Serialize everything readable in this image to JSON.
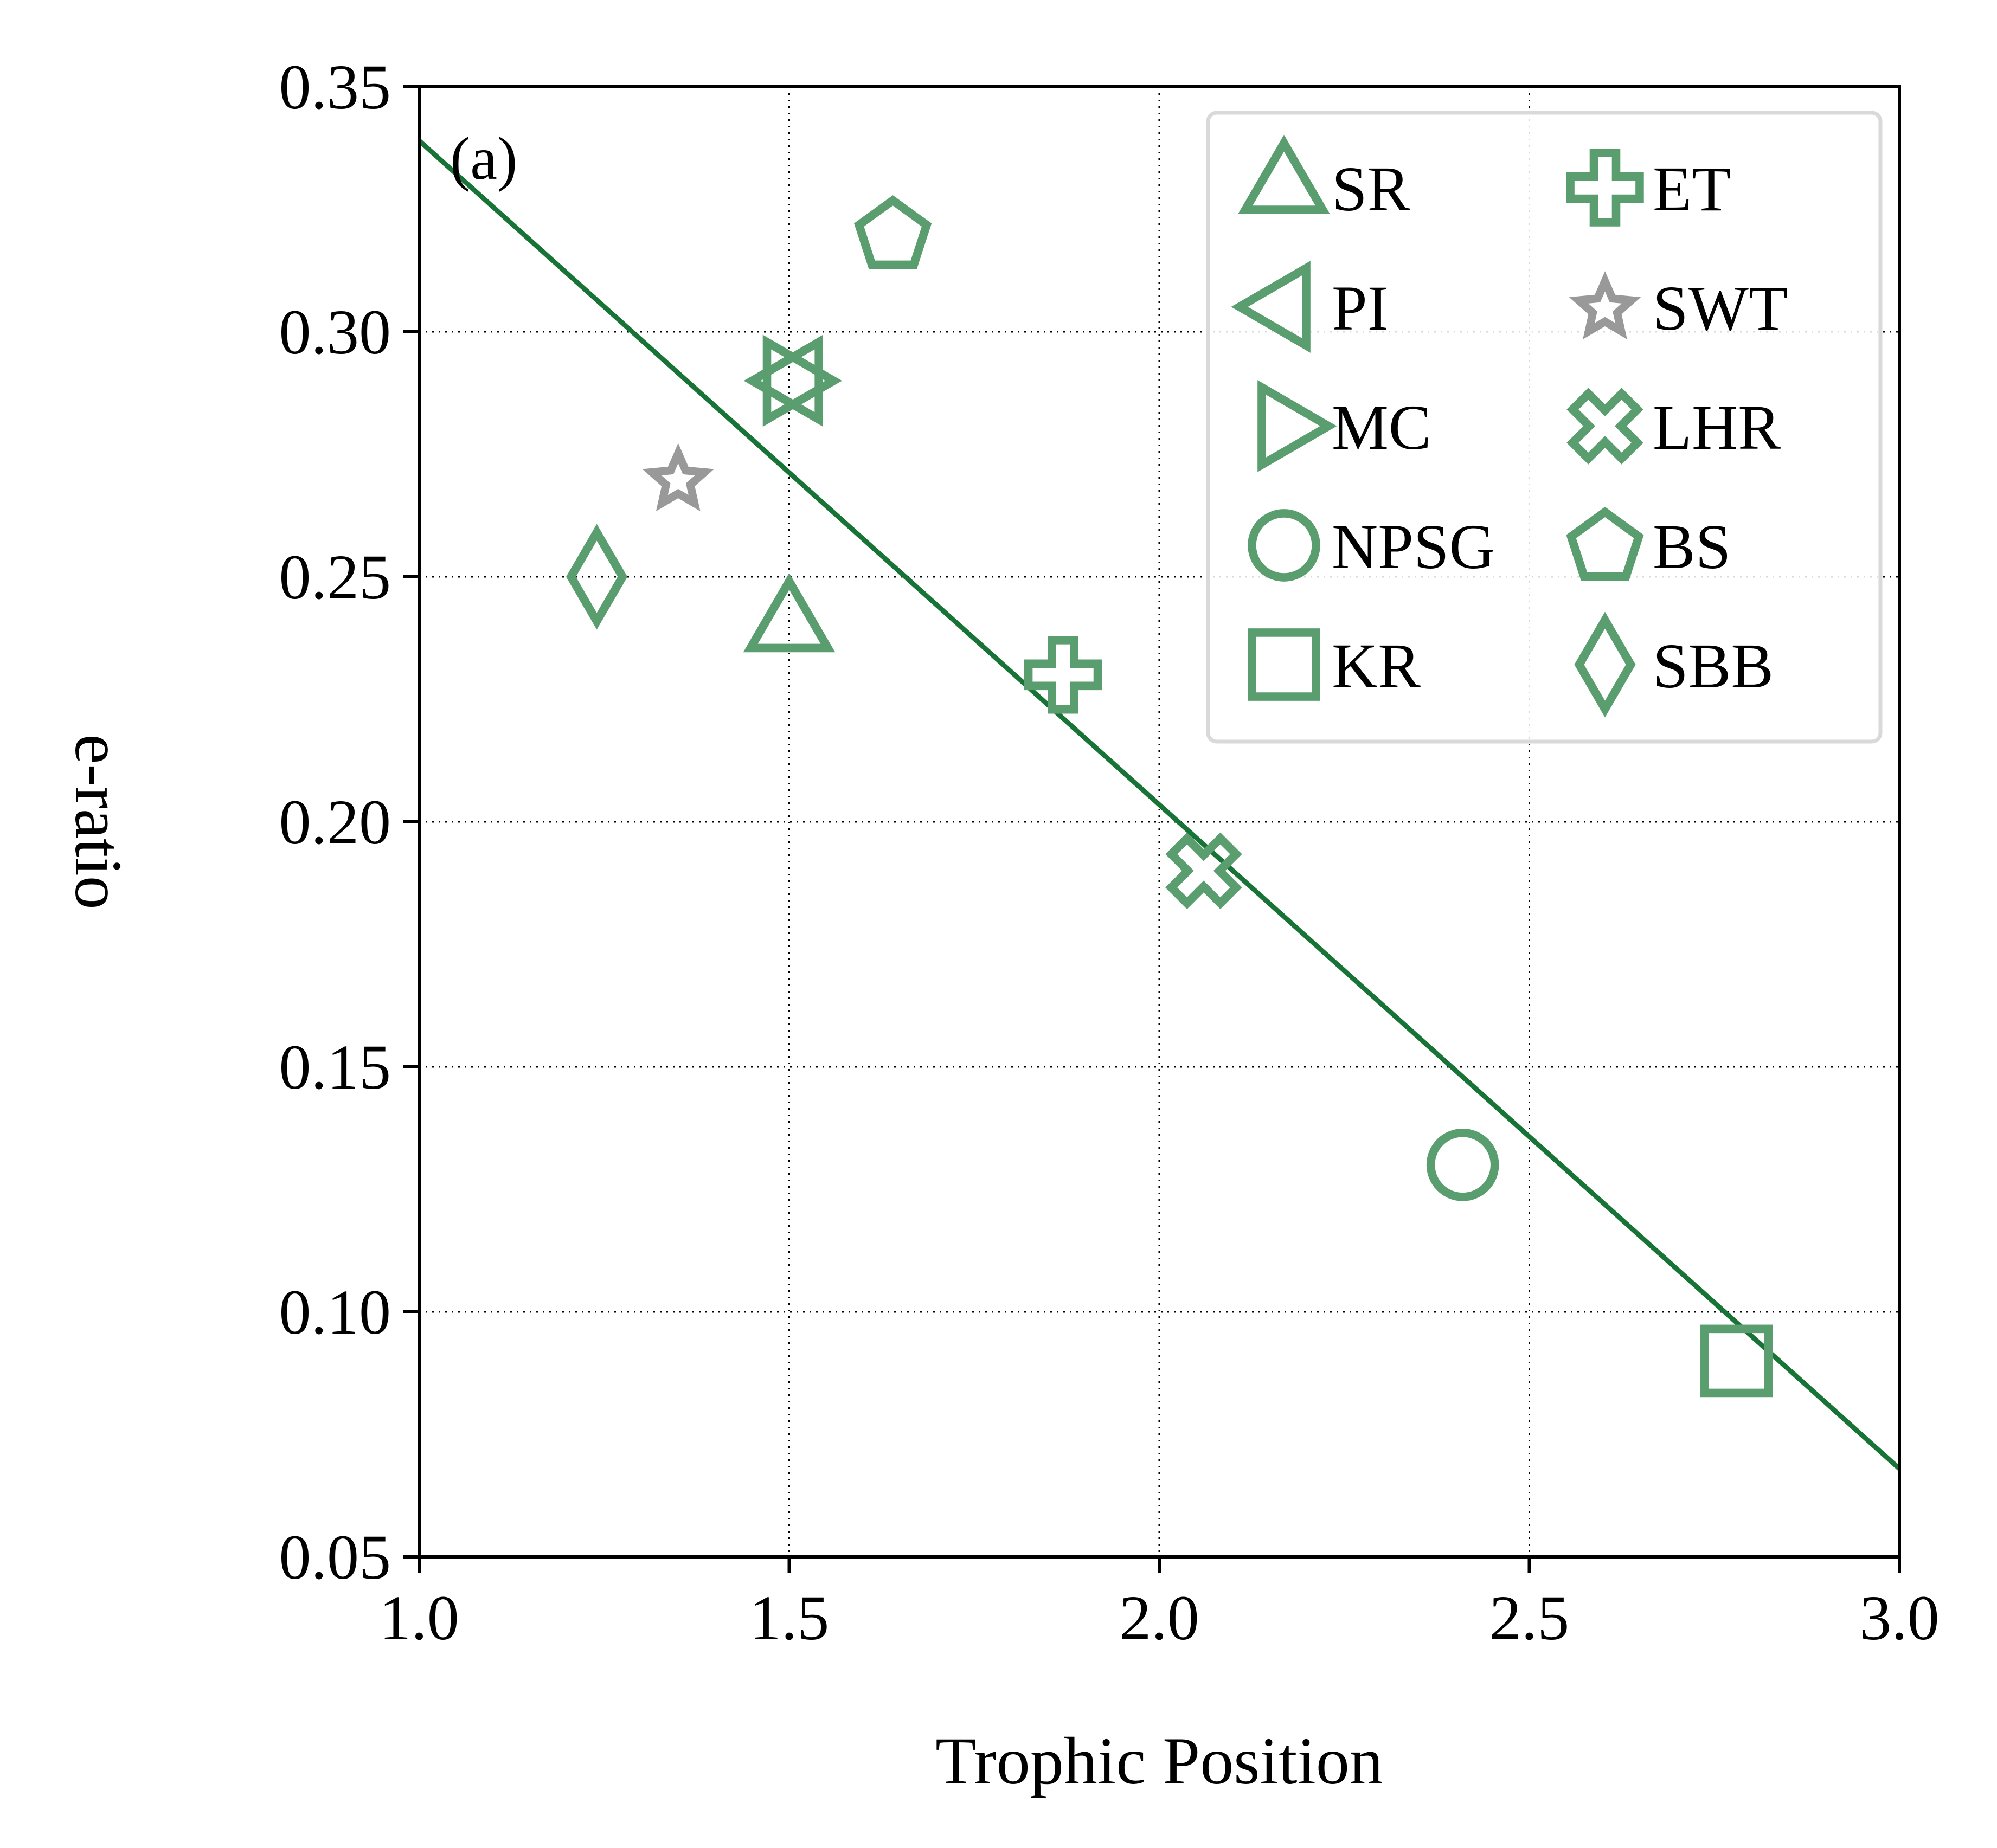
{
  "chart_data": {
    "type": "scatter",
    "panel_label": "(a)",
    "xlabel": "Trophic Position",
    "ylabel": "e-ratio",
    "xlim": [
      1.0,
      3.0
    ],
    "ylim": [
      0.05,
      0.35
    ],
    "x_ticks": [
      "1.0",
      "1.5",
      "2.0",
      "2.5",
      "3.0"
    ],
    "y_ticks": [
      "0.05",
      "0.10",
      "0.15",
      "0.20",
      "0.25",
      "0.30",
      "0.35"
    ],
    "grid": true,
    "legend_position": "top-right",
    "legend_columns": 2,
    "colors": {
      "marker": "#5a9e6f",
      "swt_marker": "#999999",
      "fit_line": "#187436"
    },
    "series": [
      {
        "name": "SR",
        "marker": "triangle-up",
        "x": 1.5,
        "y": 0.24
      },
      {
        "name": "PI",
        "marker": "triangle-left",
        "x": 1.51,
        "y": 0.29
      },
      {
        "name": "MC",
        "marker": "triangle-right",
        "x": 1.5,
        "y": 0.29
      },
      {
        "name": "NPSG",
        "marker": "circle",
        "x": 2.41,
        "y": 0.13
      },
      {
        "name": "KR",
        "marker": "square",
        "x": 2.78,
        "y": 0.09
      },
      {
        "name": "ET",
        "marker": "plus",
        "x": 1.87,
        "y": 0.23
      },
      {
        "name": "SWT",
        "marker": "star",
        "x": 1.35,
        "y": 0.27
      },
      {
        "name": "LHR",
        "marker": "x",
        "x": 2.06,
        "y": 0.19
      },
      {
        "name": "BS",
        "marker": "pentagon",
        "x": 1.64,
        "y": 0.32
      },
      {
        "name": "SBB",
        "marker": "diamond",
        "x": 1.24,
        "y": 0.25
      }
    ],
    "fit_line": {
      "x": [
        1.0,
        3.0
      ],
      "y": [
        0.339,
        0.068
      ]
    }
  }
}
